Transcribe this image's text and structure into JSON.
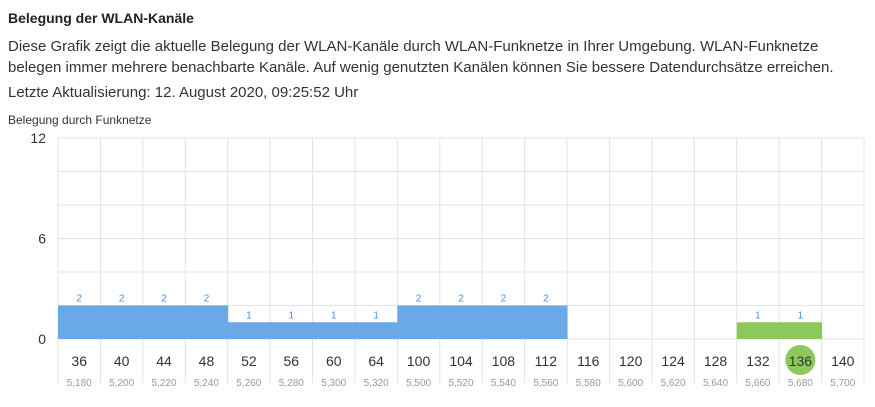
{
  "header": {
    "title": "Belegung der WLAN-Kanäle",
    "description": "Diese Grafik zeigt die aktuelle Belegung der WLAN-Kanäle durch WLAN-Funknetze in Ihrer Umgebung. WLAN-Funknetze belegen immer mehrere benachbarte Kanäle. Auf wenig genutzten Kanälen können Sie bessere Datendurchsätze erreichen.",
    "last_update": "Letzte Aktualisierung: 12. August 2020, 09:25:52 Uhr"
  },
  "chart_label": "Belegung durch Funknetze",
  "colors": {
    "blue": "#6aa8e6",
    "green": "#8dc85b",
    "grid": "#e3e3e3",
    "value_label": "#4a90d9",
    "freq_label": "#999999",
    "axis_text": "#333333"
  },
  "chart_data": {
    "type": "bar",
    "ylabel": "Belegung durch Funknetze",
    "ylim": [
      0,
      12
    ],
    "yticks": [
      "0",
      "6",
      "12"
    ],
    "categories": [
      "36",
      "40",
      "44",
      "48",
      "52",
      "56",
      "60",
      "64",
      "100",
      "104",
      "108",
      "112",
      "116",
      "120",
      "124",
      "128",
      "132",
      "136",
      "140"
    ],
    "frequencies": [
      "5,180",
      "5,200",
      "5,220",
      "5,240",
      "5,260",
      "5,280",
      "5,300",
      "5,320",
      "5,500",
      "5,520",
      "5,540",
      "5,560",
      "5,580",
      "5,600",
      "5,620",
      "5,640",
      "5,660",
      "5,680",
      "5,700"
    ],
    "values": [
      2,
      2,
      2,
      2,
      1,
      1,
      1,
      1,
      2,
      2,
      2,
      2,
      0,
      0,
      0,
      0,
      1,
      1,
      0
    ],
    "value_labels": [
      "2",
      "2",
      "2",
      "2",
      "1",
      "1",
      "1",
      "1",
      "2",
      "2",
      "2",
      "2",
      "",
      "",
      "",
      "",
      "1",
      "1",
      ""
    ],
    "bar_colors": [
      "blue",
      "blue",
      "blue",
      "blue",
      "blue",
      "blue",
      "blue",
      "blue",
      "blue",
      "blue",
      "blue",
      "blue",
      "",
      "",
      "",
      "",
      "green",
      "green",
      ""
    ],
    "highlighted_channel": "136"
  }
}
